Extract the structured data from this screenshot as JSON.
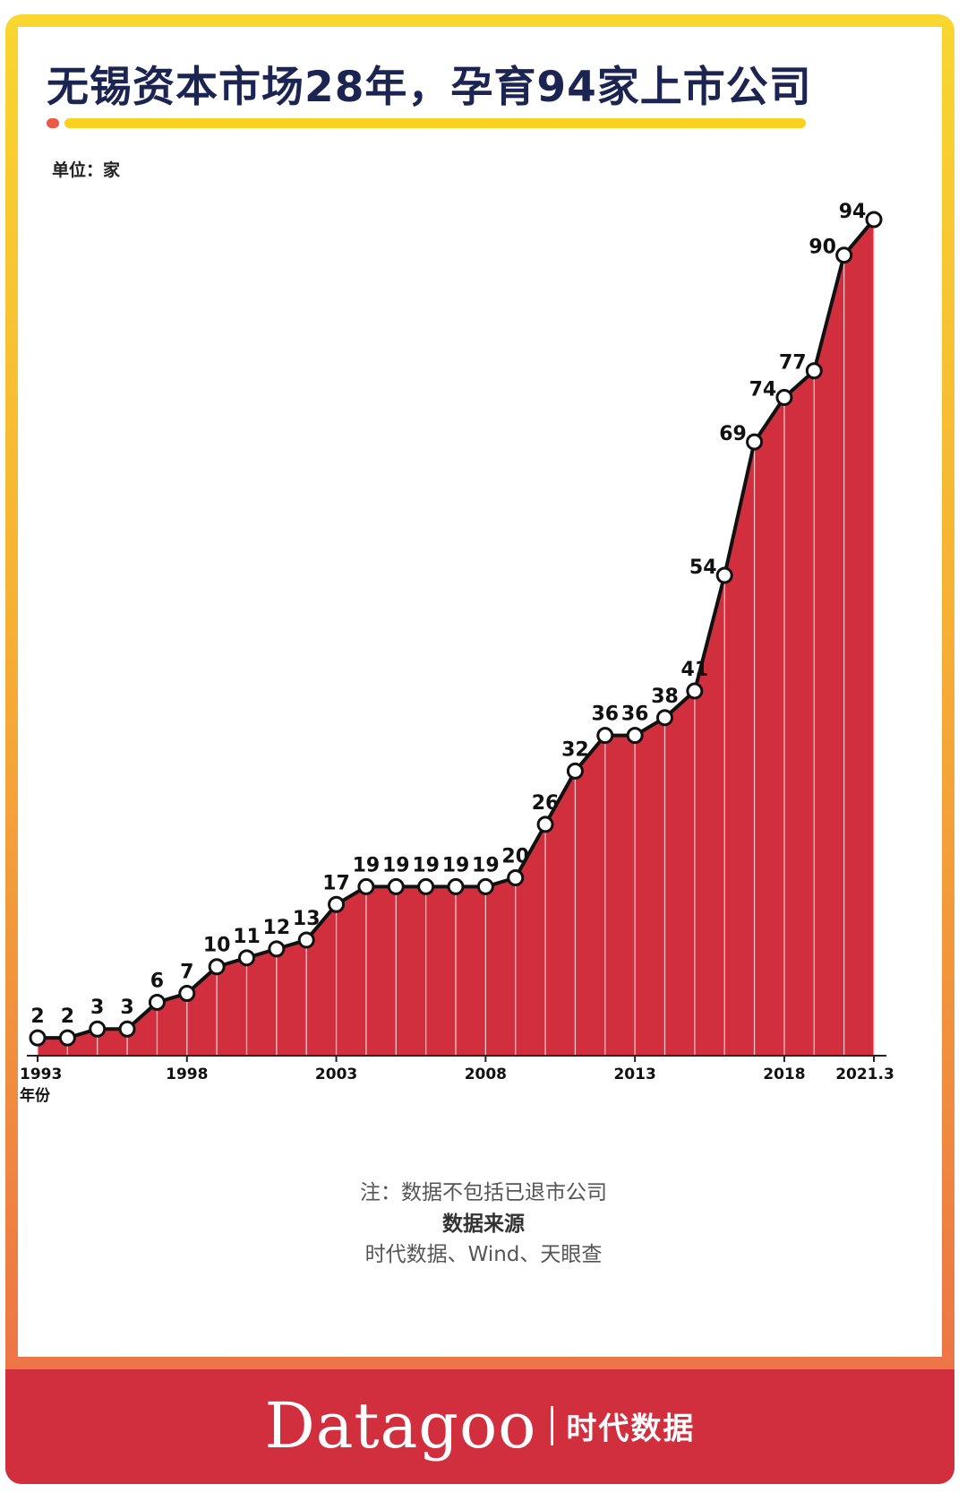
{
  "title": "无锡资本市场28年，孕育94家上市公司",
  "unit_label": "单位：家",
  "x_axis_unit_label": "年份",
  "note": "注：数据不包括已退市公司",
  "source_title": "数据来源",
  "source_text": "时代数据、Wind、天眼查",
  "brand": {
    "name": "Datagoo",
    "sub": "时代数据"
  },
  "colors": {
    "area": "#d12e3e",
    "line": "#111111",
    "marker_fill": "#ffffff",
    "title": "#1c2452",
    "accent_bar": "#f9d21f"
  },
  "chart_data": {
    "type": "area",
    "title": "无锡资本市场28年，孕育94家上市公司",
    "xlabel": "年份",
    "ylabel": "单位：家",
    "x": [
      "1993",
      "1994",
      "1995",
      "1996",
      "1997",
      "1998",
      "1999",
      "2000",
      "2001",
      "2002",
      "2003",
      "2004",
      "2005",
      "2006",
      "2007",
      "2008",
      "2009",
      "2010",
      "2011",
      "2012",
      "2013",
      "2014",
      "2015",
      "2016",
      "2017",
      "2018",
      "2019",
      "2020",
      "2021.3"
    ],
    "values": [
      2,
      2,
      3,
      3,
      6,
      7,
      10,
      11,
      12,
      13,
      17,
      19,
      19,
      19,
      19,
      19,
      20,
      26,
      32,
      36,
      36,
      38,
      41,
      54,
      69,
      74,
      77,
      90,
      94
    ],
    "tick_labels": [
      "1993",
      "1998",
      "2003",
      "2008",
      "2013",
      "2018",
      "2021.3"
    ],
    "ylim": [
      0,
      100
    ],
    "grid": false
  }
}
